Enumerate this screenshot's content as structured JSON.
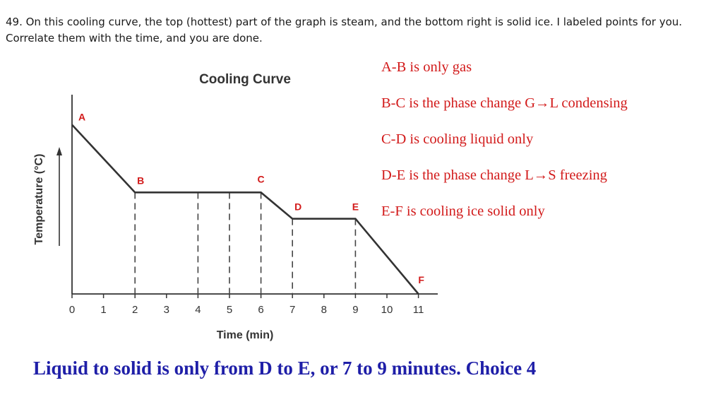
{
  "question": {
    "line1": "49.  On this cooling curve, the top (hottest) part of the graph is steam, and the bottom right is solid ice.  I labeled points for you.",
    "line2": "Correlate them with the time, and you are done."
  },
  "chart_data": {
    "type": "line",
    "title": "Cooling Curve",
    "xlabel": "Time (min)",
    "ylabel": "Temperature (°C)",
    "x_ticks": [
      0,
      1,
      2,
      3,
      4,
      5,
      6,
      7,
      8,
      9,
      10,
      11
    ],
    "xlim": [
      0,
      11
    ],
    "y_ticks_shown": false,
    "grid": "dashed verticals at x = 2, 4, 5, 6, 7, 9",
    "dashed_x": [
      2,
      4,
      5,
      6,
      7,
      9
    ],
    "points": [
      {
        "label": "A",
        "x": 0,
        "level": 0.9
      },
      {
        "label": "B",
        "x": 2,
        "level": 0.54
      },
      {
        "label": "C",
        "x": 6,
        "level": 0.54
      },
      {
        "label": "D",
        "x": 7,
        "level": 0.4
      },
      {
        "label": "E",
        "x": 9,
        "level": 0.4
      },
      {
        "label": "F",
        "x": 11,
        "level": 0.0
      }
    ],
    "line_color": "#333333",
    "point_label_color": "#d21a1a"
  },
  "notes": [
    "A-B is only gas",
    "B-C is the phase change G→L condensing",
    "C-D is cooling liquid only",
    "D-E is the phase change L→S freezing",
    "E-F is cooling ice solid only"
  ],
  "answer": "Liquid to solid is only from D to E, or 7 to 9 minutes.  Choice 4"
}
